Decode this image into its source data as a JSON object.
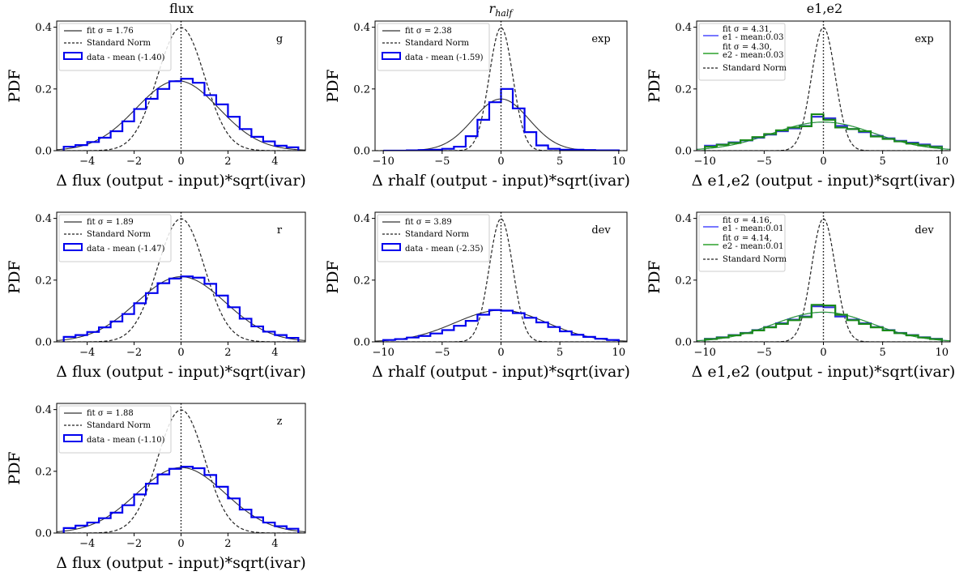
{
  "figure": {
    "column_titles": [
      "flux",
      "r",
      "e1,e2"
    ],
    "column_title_subscript": [
      "",
      "half",
      ""
    ]
  },
  "chart_data": [
    {
      "type": "histogram",
      "tag": "g",
      "xlabel": "Δ flux (output - input)*sqrt(ivar)",
      "ylabel": "PDF",
      "xlim": [
        -5.3,
        5.3
      ],
      "ylim": [
        0,
        0.42
      ],
      "xticks": [
        -4,
        -2,
        0,
        2,
        4
      ],
      "yticks": [
        0.0,
        0.2,
        0.4
      ],
      "legend": [
        "fit σ = 1.76",
        "Standard Norm",
        "data - mean (-1.40)"
      ],
      "fits": [
        {
          "name": "fit σ = 1.76",
          "color": "#333333",
          "mu": -0.15,
          "sigma": 1.76
        }
      ],
      "norm": {
        "name": "Standard Norm",
        "mu": 0,
        "sigma": 1
      },
      "series": [
        {
          "name": "data - mean (-1.40)",
          "color": "#0000ee",
          "bin_edges": [
            -5,
            -4.5,
            -4,
            -3.5,
            -3,
            -2.5,
            -2,
            -1.5,
            -1,
            -0.5,
            0,
            0.5,
            1,
            1.5,
            2,
            2.5,
            3,
            3.5,
            4,
            4.5,
            5
          ],
          "values": [
            0.013,
            0.018,
            0.028,
            0.042,
            0.063,
            0.095,
            0.135,
            0.168,
            0.2,
            0.225,
            0.233,
            0.22,
            0.18,
            0.15,
            0.11,
            0.07,
            0.045,
            0.03,
            0.016,
            0.011
          ]
        }
      ]
    },
    {
      "type": "histogram",
      "tag": "exp",
      "xlabel": "Δ rhalf (output - input)*sqrt(ivar)",
      "ylabel": "PDF",
      "xlim": [
        -10.7,
        10.7
      ],
      "ylim": [
        0,
        0.42
      ],
      "xticks": [
        -10,
        -5,
        0,
        5,
        10
      ],
      "yticks": [
        0.0,
        0.2,
        0.4
      ],
      "legend": [
        "fit σ = 2.38",
        "Standard Norm",
        "data - mean (-1.59)"
      ],
      "fits": [
        {
          "name": "fit σ = 2.38",
          "color": "#333333",
          "mu": 0,
          "sigma": 2.38
        }
      ],
      "norm": {
        "name": "Standard Norm",
        "mu": 0,
        "sigma": 1
      },
      "series": [
        {
          "name": "data - mean (-1.59)",
          "color": "#0000ee",
          "bin_edges": [
            -10,
            -9,
            -8,
            -7,
            -6,
            -5,
            -4,
            -3,
            -2,
            -1,
            0,
            1,
            2,
            3,
            4,
            5,
            6,
            7,
            8,
            9,
            10
          ],
          "values": [
            0.0,
            0.0,
            0.001,
            0.002,
            0.003,
            0.006,
            0.013,
            0.047,
            0.1,
            0.157,
            0.2,
            0.137,
            0.06,
            0.017,
            0.006,
            0.003,
            0.003,
            0.002,
            0.001,
            0.001
          ]
        }
      ]
    },
    {
      "type": "histogram",
      "tag": "exp",
      "xlabel": "Δ e1,e2 (output - input)*sqrt(ivar)",
      "ylabel": "PDF",
      "xlim": [
        -10.7,
        10.7
      ],
      "ylim": [
        0,
        0.42
      ],
      "xticks": [
        -10,
        -5,
        0,
        5,
        10
      ],
      "yticks": [
        0.0,
        0.2,
        0.4
      ],
      "legend": [
        "fit σ = 4.31,",
        "e1 - mean:0.03",
        "fit σ = 4.30,",
        "e2 - mean:0.03",
        "Standard Norm"
      ],
      "fits": [
        {
          "name": "e1",
          "color": "#4a4aff",
          "mu": 0,
          "sigma": 4.31
        },
        {
          "name": "e2",
          "color": "#2ca02c",
          "mu": 0,
          "sigma": 4.3
        }
      ],
      "norm": {
        "name": "Standard Norm",
        "mu": 0,
        "sigma": 1
      },
      "series": [
        {
          "name": "e1",
          "color": "#3333dd",
          "bin_edges": [
            -10,
            -9,
            -8,
            -7,
            -6,
            -5,
            -4,
            -3,
            -2,
            -1,
            0,
            1,
            2,
            3,
            4,
            5,
            6,
            7,
            8,
            9,
            10
          ],
          "values": [
            0.016,
            0.02,
            0.027,
            0.033,
            0.042,
            0.052,
            0.063,
            0.072,
            0.08,
            0.11,
            0.105,
            0.08,
            0.07,
            0.06,
            0.048,
            0.04,
            0.032,
            0.026,
            0.02,
            0.014
          ]
        },
        {
          "name": "e2",
          "color": "#1a8a1a",
          "bin_edges": [
            -10,
            -9,
            -8,
            -7,
            -6,
            -5,
            -4,
            -3,
            -2,
            -1,
            0,
            1,
            2,
            3,
            4,
            5,
            6,
            7,
            8,
            9,
            10
          ],
          "values": [
            0.013,
            0.019,
            0.025,
            0.034,
            0.044,
            0.054,
            0.066,
            0.075,
            0.079,
            0.118,
            0.1,
            0.075,
            0.07,
            0.063,
            0.046,
            0.038,
            0.03,
            0.023,
            0.017,
            0.012
          ]
        }
      ]
    },
    {
      "type": "histogram",
      "tag": "r",
      "xlabel": "Δ flux (output - input)*sqrt(ivar)",
      "ylabel": "PDF",
      "xlim": [
        -5.3,
        5.3
      ],
      "ylim": [
        0,
        0.42
      ],
      "xticks": [
        -4,
        -2,
        0,
        2,
        4
      ],
      "yticks": [
        0.0,
        0.2,
        0.4
      ],
      "legend": [
        "fit σ = 1.89",
        "Standard Norm",
        "data - mean (-1.47)"
      ],
      "fits": [
        {
          "name": "fit σ = 1.89",
          "color": "#333333",
          "mu": 0,
          "sigma": 1.89
        }
      ],
      "norm": {
        "name": "Standard Norm",
        "mu": 0,
        "sigma": 1
      },
      "series": [
        {
          "name": "data - mean (-1.47)",
          "color": "#0000ee",
          "bin_edges": [
            -5,
            -4.5,
            -4,
            -3.5,
            -3,
            -2.5,
            -2,
            -1.5,
            -1,
            -0.5,
            0,
            0.5,
            1,
            1.5,
            2,
            2.5,
            3,
            3.5,
            4,
            4.5,
            5
          ],
          "values": [
            0.016,
            0.022,
            0.032,
            0.047,
            0.066,
            0.09,
            0.125,
            0.158,
            0.19,
            0.205,
            0.212,
            0.208,
            0.188,
            0.15,
            0.112,
            0.075,
            0.05,
            0.033,
            0.022,
            0.013
          ]
        }
      ]
    },
    {
      "type": "histogram",
      "tag": "dev",
      "xlabel": "Δ rhalf (output - input)*sqrt(ivar)",
      "ylabel": "PDF",
      "xlim": [
        -10.7,
        10.7
      ],
      "ylim": [
        0,
        0.42
      ],
      "xticks": [
        -10,
        -5,
        0,
        5,
        10
      ],
      "yticks": [
        0.0,
        0.2,
        0.4
      ],
      "legend": [
        "fit σ = 3.89",
        "Standard Norm",
        "data - mean (-2.35)"
      ],
      "fits": [
        {
          "name": "fit σ = 3.89",
          "color": "#333333",
          "mu": 0,
          "sigma": 3.89
        }
      ],
      "norm": {
        "name": "Standard Norm",
        "mu": 0,
        "sigma": 1
      },
      "series": [
        {
          "name": "data - mean (-2.35)",
          "color": "#0000ee",
          "bin_edges": [
            -10,
            -9,
            -8,
            -7,
            -6,
            -5,
            -4,
            -3,
            -2,
            -1,
            0,
            1,
            2,
            3,
            4,
            5,
            6,
            7,
            8,
            9,
            10
          ],
          "values": [
            0.006,
            0.009,
            0.014,
            0.019,
            0.027,
            0.038,
            0.052,
            0.068,
            0.088,
            0.103,
            0.101,
            0.093,
            0.078,
            0.063,
            0.048,
            0.034,
            0.023,
            0.016,
            0.01,
            0.006
          ]
        }
      ]
    },
    {
      "type": "histogram",
      "tag": "dev",
      "xlabel": "Δ e1,e2 (output - input)*sqrt(ivar)",
      "ylabel": "PDF",
      "xlim": [
        -10.7,
        10.7
      ],
      "ylim": [
        0,
        0.42
      ],
      "xticks": [
        -10,
        -5,
        0,
        5,
        10
      ],
      "yticks": [
        0.0,
        0.2,
        0.4
      ],
      "legend": [
        "fit σ = 4.16,",
        "e1 - mean:0.01",
        "fit σ = 4.14,",
        "e2 - mean:0.01",
        "Standard Norm"
      ],
      "fits": [
        {
          "name": "e1",
          "color": "#4a4aff",
          "mu": 0,
          "sigma": 4.16
        },
        {
          "name": "e2",
          "color": "#2ca02c",
          "mu": 0,
          "sigma": 4.14
        }
      ],
      "norm": {
        "name": "Standard Norm",
        "mu": 0,
        "sigma": 1
      },
      "series": [
        {
          "name": "e1",
          "color": "#3333dd",
          "bin_edges": [
            -10,
            -9,
            -8,
            -7,
            -6,
            -5,
            -4,
            -3,
            -2,
            -1,
            0,
            1,
            2,
            3,
            4,
            5,
            6,
            7,
            8,
            9,
            10
          ],
          "values": [
            0.01,
            0.015,
            0.022,
            0.029,
            0.038,
            0.048,
            0.06,
            0.072,
            0.082,
            0.115,
            0.112,
            0.082,
            0.072,
            0.06,
            0.048,
            0.038,
            0.029,
            0.022,
            0.015,
            0.01
          ]
        },
        {
          "name": "e2",
          "color": "#1a8a1a",
          "bin_edges": [
            -10,
            -9,
            -8,
            -7,
            -6,
            -5,
            -4,
            -3,
            -2,
            -1,
            0,
            1,
            2,
            3,
            4,
            5,
            6,
            7,
            8,
            9,
            10
          ],
          "values": [
            0.009,
            0.014,
            0.021,
            0.028,
            0.037,
            0.047,
            0.058,
            0.07,
            0.08,
            0.12,
            0.118,
            0.088,
            0.07,
            0.058,
            0.047,
            0.037,
            0.028,
            0.021,
            0.014,
            0.009
          ]
        }
      ]
    },
    {
      "type": "histogram",
      "tag": "z",
      "xlabel": "Δ flux (output - input)*sqrt(ivar)",
      "ylabel": "PDF",
      "xlim": [
        -5.3,
        5.3
      ],
      "ylim": [
        0,
        0.42
      ],
      "xticks": [
        -4,
        -2,
        0,
        2,
        4
      ],
      "yticks": [
        0.0,
        0.2,
        0.4
      ],
      "legend": [
        "fit σ = 1.88",
        "Standard Norm",
        "data - mean (-1.10)"
      ],
      "fits": [
        {
          "name": "fit σ = 1.88",
          "color": "#333333",
          "mu": 0,
          "sigma": 1.88
        }
      ],
      "norm": {
        "name": "Standard Norm",
        "mu": 0,
        "sigma": 1
      },
      "series": [
        {
          "name": "data - mean (-1.10)",
          "color": "#0000ee",
          "bin_edges": [
            -5,
            -4.5,
            -4,
            -3.5,
            -3,
            -2.5,
            -2,
            -1.5,
            -1,
            -0.5,
            0,
            0.5,
            1,
            1.5,
            2,
            2.5,
            3,
            3.5,
            4,
            4.5,
            5
          ],
          "values": [
            0.016,
            0.024,
            0.034,
            0.048,
            0.066,
            0.09,
            0.125,
            0.16,
            0.19,
            0.208,
            0.215,
            0.21,
            0.188,
            0.15,
            0.112,
            0.076,
            0.051,
            0.034,
            0.022,
            0.014
          ]
        }
      ]
    }
  ]
}
